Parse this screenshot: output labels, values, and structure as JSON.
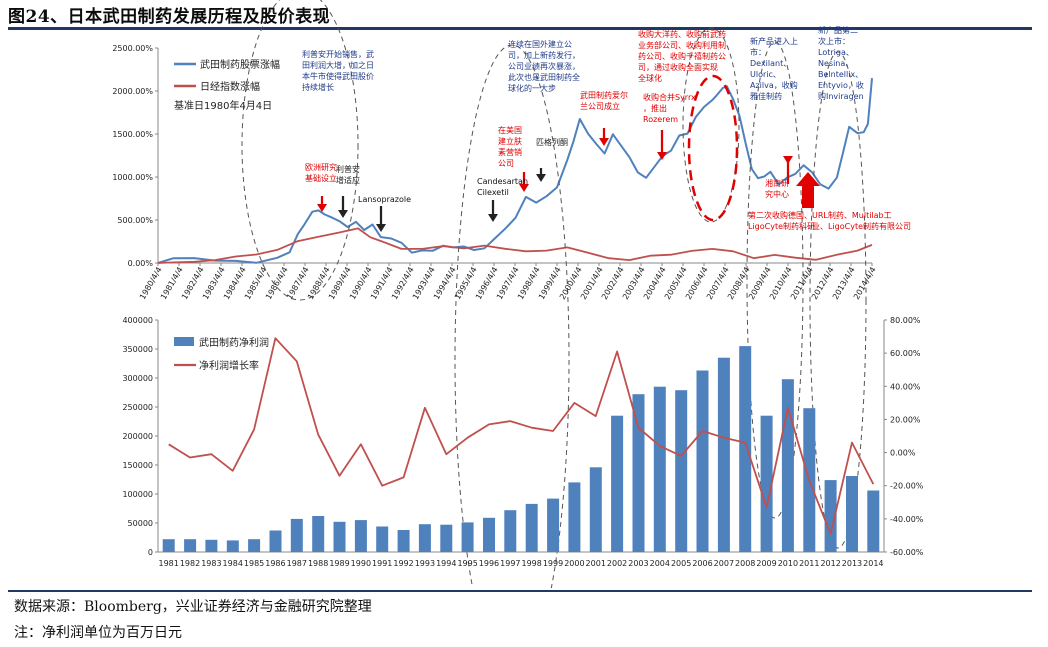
{
  "figure_title": "图24、日本武田制药发展历程及股价表现",
  "source_note": "数据来源：Bloomberg，兴业证券经济与金融研究院整理",
  "unit_note": "注：净利润单位为百万日元",
  "colors": {
    "blue": "#4f81bd",
    "red": "#c0504d",
    "bar": "#4f81bd",
    "rule": "#1f3864",
    "arrow_red": "#e00000",
    "arrow_black": "#222222",
    "annot_blue": "#1f3a8a"
  },
  "chart_data": [
    {
      "type": "line",
      "legend": [
        "武田制药股票涨幅",
        "日经指数涨幅"
      ],
      "legend_note": "基准日1980年4月4日",
      "y_ticks": [
        "0.00%",
        "500.00%",
        "1000.00%",
        "1500.00%",
        "2000.00%",
        "2500.00%"
      ],
      "ylim": [
        0,
        2500
      ],
      "x_ticks": [
        "1980/4/4",
        "1981/4/4",
        "1982/4/4",
        "1983/4/4",
        "1984/4/4",
        "1985/4/4",
        "1986/4/4",
        "1987/4/4",
        "1988/4/4",
        "1989/4/4",
        "1990/4/4",
        "1991/4/4",
        "1992/4/4",
        "1993/4/4",
        "1994/4/4",
        "1995/4/4",
        "1996/4/4",
        "1997/4/4",
        "1998/4/4",
        "1999/4/4",
        "2000/4/4",
        "2001/4/4",
        "2002/4/4",
        "2003/4/4",
        "2004/4/4",
        "2005/4/4",
        "2006/4/4",
        "2007/4/4",
        "2008/4/4",
        "2009/4/4",
        "2010/4/4",
        "2011/4/4",
        "2012/4/4",
        "2013/4/4",
        "2014/4/4"
      ],
      "series": [
        {
          "name": "武田制药股票涨幅",
          "color": "#4f81bd",
          "x": [
            1980.25,
            1981,
            1982,
            1983,
            1984,
            1985,
            1986,
            1986.6,
            1987.0,
            1987.3,
            1987.7,
            1988.0,
            1988.3,
            1988.7,
            1989.0,
            1989.4,
            1989.8,
            1990.2,
            1990.6,
            1991.0,
            1991.5,
            1992.0,
            1992.5,
            1993.0,
            1993.5,
            1994.0,
            1994.5,
            1995.0,
            1995.5,
            1996.0,
            1996.5,
            1997.0,
            1997.5,
            1998.0,
            1998.5,
            1999.0,
            1999.5,
            2000.0,
            2000.3,
            2000.6,
            2001.0,
            2001.4,
            2001.8,
            2002.2,
            2002.6,
            2003.0,
            2003.4,
            2003.8,
            2004.2,
            2004.6,
            2005.0,
            2005.4,
            2005.8,
            2006.2,
            2006.6,
            2007.0,
            2007.2,
            2007.5,
            2007.7,
            2008.0,
            2008.3,
            2008.6,
            2008.9,
            2009.2,
            2009.5,
            2009.8,
            2010.2,
            2010.6,
            2011.0,
            2011.4,
            2011.8,
            2012.2,
            2012.6,
            2013.0,
            2013.3,
            2013.6,
            2014.0,
            2014.3,
            2014.5,
            2014.7
          ],
          "y": [
            0,
            50,
            20,
            40,
            30,
            40,
            50,
            120,
            300,
            450,
            600,
            650,
            560,
            520,
            450,
            420,
            480,
            420,
            450,
            300,
            250,
            230,
            120,
            180,
            150,
            200,
            150,
            180,
            150,
            200,
            300,
            400,
            500,
            750,
            700,
            800,
            900,
            1200,
            1400,
            1650,
            1500,
            1400,
            1300,
            1500,
            1350,
            1200,
            1050,
            1000,
            1150,
            1250,
            1300,
            1450,
            1500,
            1700,
            1850,
            1900,
            1950,
            2000,
            2050,
            1900,
            1750,
            1400,
            1100,
            950,
            1000,
            1050,
            950,
            1000,
            1050,
            1100,
            1050,
            900,
            900,
            1000,
            1300,
            1550,
            1500,
            1500,
            1650,
            2150
          ]
        },
        {
          "name": "日经指数涨幅",
          "color": "#c0504d",
          "x": [
            1980.25,
            1981,
            1982,
            1983,
            1984,
            1985,
            1986,
            1987,
            1988,
            1989,
            1989.9,
            1990.5,
            1991,
            1992,
            1993,
            1994,
            1995,
            1996,
            1997,
            1998,
            1999,
            2000,
            2001,
            2002,
            2003,
            2004,
            2005,
            2006,
            2007,
            2008,
            2009,
            2010,
            2011,
            2012,
            2013,
            2014,
            2014.7
          ],
          "y": [
            0,
            10,
            20,
            40,
            80,
            100,
            150,
            250,
            300,
            350,
            400,
            300,
            260,
            170,
            170,
            200,
            170,
            200,
            160,
            130,
            140,
            180,
            120,
            60,
            40,
            90,
            100,
            140,
            160,
            130,
            50,
            90,
            60,
            40,
            100,
            150,
            210
          ]
        }
      ]
    },
    {
      "type": "bar",
      "legend": [
        "武田制药净利润",
        "净利润增长率"
      ],
      "categories": [
        "1981",
        "1982",
        "1983",
        "1984",
        "1985",
        "1986",
        "1987",
        "1988",
        "1989",
        "1990",
        "1991",
        "1992",
        "1993",
        "1994",
        "1995",
        "1996",
        "1997",
        "1998",
        "1999",
        "2000",
        "2001",
        "2002",
        "2003",
        "2004",
        "2005",
        "2006",
        "2007",
        "2008",
        "2009",
        "2010",
        "2011",
        "2012",
        "2013",
        "2014"
      ],
      "y_left_ticks": [
        "0",
        "50000",
        "100000",
        "150000",
        "200000",
        "250000",
        "300000",
        "350000",
        "400000"
      ],
      "ylim_left": [
        0,
        400000
      ],
      "y_right_ticks": [
        "-60.00%",
        "-40.00%",
        "-20.00%",
        "0.00%",
        "20.00%",
        "40.00%",
        "60.00%",
        "80.00%"
      ],
      "ylim_right": [
        -60,
        80
      ],
      "series": [
        {
          "name": "武田制药净利润",
          "color": "#4f81bd",
          "values": [
            22000,
            22000,
            21000,
            20000,
            22000,
            37000,
            57000,
            62000,
            52000,
            55000,
            44000,
            38000,
            48000,
            47000,
            51000,
            59000,
            72000,
            83000,
            92000,
            120000,
            146000,
            235000,
            272000,
            285000,
            279000,
            313000,
            335000,
            355000,
            235000,
            298000,
            248000,
            124000,
            131000,
            106000
          ]
        },
        {
          "name": "净利润增长率",
          "color": "#c0504d",
          "values": [
            5,
            -3,
            -1,
            -11,
            14,
            69,
            55,
            11,
            -14,
            5,
            -20,
            -15,
            27,
            -1,
            9,
            17,
            19,
            15,
            13,
            30,
            22,
            61,
            15,
            4,
            -2,
            13,
            9,
            6,
            -33,
            27,
            -17,
            -49,
            6,
            -19
          ]
        }
      ]
    }
  ],
  "annotations": [
    "利普安开始销售，武田利润大增，加之日本牛市使得武田股价持续增长",
    "欧洲研究基础设立",
    "利普安增适应",
    "Lansoprazole",
    "Candesartan Cilexetil",
    "在美国建立肤素营销公司",
    "匹格列酮",
    "连续在国外建立公司，加上新药发行，公司业绩再次暴涨，此次也是武田制药全球化的一大步",
    "武田制药爱尔兰公司成立",
    "收购大洋药、收购前武药、业务部公司、收购利用制药公司、收购千禧制药公司，通过收购全面实现全球化",
    "收购合并Syrrx，推出Rozerem",
    "新产品进入上市：Dexilant、Uloric、Azilva，收购雅佳制药",
    "湘南研究中心",
    "新产品第二次上市：Lotriga、Nesina、Belntellix、Entyvio，收购Inviragen",
    "第二次收购德国、LigoCyte制药科研、URL制药、Multilab工业、LigoCyte制药科研公司有限公司"
  ]
}
